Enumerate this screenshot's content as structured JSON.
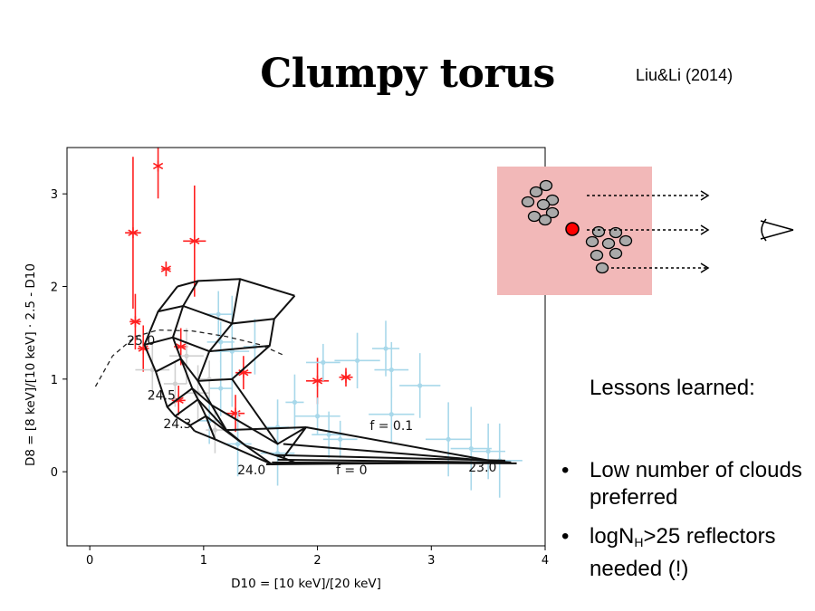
{
  "slide": {
    "title": "Clumpy torus",
    "citation": "Liu&Li (2014)",
    "lessons_heading": "Lessons learned:",
    "bullets": [
      {
        "text": "Low number of clouds preferred"
      },
      {
        "pre": "logN",
        "sub": "H",
        "post": ">25 reflectors needed (!)"
      }
    ],
    "bullet_glyph": "•"
  },
  "chart_data": {
    "type": "scatter",
    "xlabel": "D10 = [10 keV]/[20 keV]",
    "ylabel": "D8 = [8 keV]/[10 keV] · 2.5 - D10",
    "xlim": [
      -0.2,
      4.0
    ],
    "ylim": [
      -0.8,
      3.5
    ],
    "xticks": [
      0,
      1,
      2,
      3,
      4
    ],
    "yticks": [
      0,
      1,
      2,
      3
    ],
    "grid": false,
    "colors": {
      "red": "#ff2020",
      "lightblue": "#a8d8ea",
      "grey": "#d0d0d0",
      "grid_lines": "#111111"
    },
    "series": [
      {
        "marker": "star",
        "color": "#ff2020",
        "points": [
          {
            "x": 0.38,
            "y": 2.58,
            "xerr": 0.07,
            "yerr": 0.82
          },
          {
            "x": 0.92,
            "y": 2.49,
            "xerr": 0.1,
            "yerr": 0.6
          },
          {
            "x": 0.67,
            "y": 2.19,
            "xerr": 0.04,
            "yerr": 0.08
          },
          {
            "x": 0.4,
            "y": 1.62,
            "xerr": 0.05,
            "yerr": 0.3
          },
          {
            "x": 0.47,
            "y": 1.33,
            "xerr": 0.05,
            "yerr": 0.25
          },
          {
            "x": 0.8,
            "y": 1.35,
            "xerr": 0.06,
            "yerr": 0.2
          },
          {
            "x": 1.35,
            "y": 1.07,
            "xerr": 0.07,
            "yerr": 0.18
          },
          {
            "x": 0.78,
            "y": 0.77,
            "xerr": 0.06,
            "yerr": 0.16
          },
          {
            "x": 1.28,
            "y": 0.63,
            "xerr": 0.08,
            "yerr": 0.2
          },
          {
            "x": 2.0,
            "y": 0.98,
            "xerr": 0.1,
            "yerr": 0.25
          },
          {
            "x": 2.25,
            "y": 1.02,
            "xerr": 0.06,
            "yerr": 0.1
          },
          {
            "x": 0.6,
            "y": 3.3,
            "xerr": 0.0,
            "yerr": 0.35
          }
        ]
      },
      {
        "marker": "dot",
        "color": "#a8d8ea",
        "points": [
          {
            "x": 1.13,
            "y": 1.7,
            "xerr": 0.12,
            "yerr": 0.25
          },
          {
            "x": 1.15,
            "y": 1.4,
            "xerr": 0.12,
            "yerr": 0.22
          },
          {
            "x": 1.25,
            "y": 1.3,
            "xerr": 0.15,
            "yerr": 0.6
          },
          {
            "x": 1.45,
            "y": 1.35,
            "xerr": 0.1,
            "yerr": 0.3
          },
          {
            "x": 1.15,
            "y": 0.9,
            "xerr": 0.1,
            "yerr": 0.3
          },
          {
            "x": 1.05,
            "y": 0.55,
            "xerr": 0.1,
            "yerr": 0.25
          },
          {
            "x": 1.3,
            "y": 0.3,
            "xerr": 0.12,
            "yerr": 0.35
          },
          {
            "x": 1.65,
            "y": 0.48,
            "xerr": 0.1,
            "yerr": 0.3
          },
          {
            "x": 1.65,
            "y": 0.2,
            "xerr": 0.15,
            "yerr": 0.35
          },
          {
            "x": 1.8,
            "y": 0.75,
            "xerr": 0.08,
            "yerr": 0.3
          },
          {
            "x": 2.0,
            "y": 0.6,
            "xerr": 0.2,
            "yerr": 0.2
          },
          {
            "x": 2.1,
            "y": 0.4,
            "xerr": 0.15,
            "yerr": 0.25
          },
          {
            "x": 2.2,
            "y": 0.35,
            "xerr": 0.15,
            "yerr": 0.2
          },
          {
            "x": 2.35,
            "y": 1.2,
            "xerr": 0.2,
            "yerr": 0.3
          },
          {
            "x": 2.05,
            "y": 1.18,
            "xerr": 0.15,
            "yerr": 0.2
          },
          {
            "x": 2.6,
            "y": 1.33,
            "xerr": 0.12,
            "yerr": 0.3
          },
          {
            "x": 2.65,
            "y": 1.1,
            "xerr": 0.15,
            "yerr": 0.3
          },
          {
            "x": 2.9,
            "y": 0.93,
            "xerr": 0.18,
            "yerr": 0.35
          },
          {
            "x": 2.65,
            "y": 0.62,
            "xerr": 0.2,
            "yerr": 0.3
          },
          {
            "x": 3.15,
            "y": 0.35,
            "xerr": 0.2,
            "yerr": 0.4
          },
          {
            "x": 3.35,
            "y": 0.25,
            "xerr": 0.18,
            "yerr": 0.45
          },
          {
            "x": 3.6,
            "y": 0.12,
            "xerr": 0.2,
            "yerr": 0.4
          },
          {
            "x": 3.5,
            "y": 0.22,
            "xerr": 0.15,
            "yerr": 0.3
          }
        ]
      },
      {
        "marker": "dot",
        "color": "#d0d0d0",
        "points": [
          {
            "x": 0.55,
            "y": 1.1,
            "xerr": 0.15,
            "yerr": 0.3
          },
          {
            "x": 0.75,
            "y": 0.95,
            "xerr": 0.1,
            "yerr": 0.25
          },
          {
            "x": 0.85,
            "y": 1.25,
            "xerr": 0.15,
            "yerr": 0.3
          },
          {
            "x": 1.05,
            "y": 1.0,
            "xerr": 0.12,
            "yerr": 0.2
          },
          {
            "x": 0.95,
            "y": 0.85,
            "xerr": 0.1,
            "yerr": 0.3
          },
          {
            "x": 1.1,
            "y": 0.45,
            "xerr": 0.08,
            "yerr": 0.25
          }
        ]
      }
    ],
    "grid_model": {
      "rows": [
        [
          [
            0.77,
            2.0
          ],
          [
            0.95,
            2.06
          ],
          [
            1.32,
            2.08
          ],
          [
            1.8,
            1.9
          ]
        ],
        [
          [
            0.6,
            1.73
          ],
          [
            0.82,
            1.79
          ],
          [
            1.25,
            1.6
          ],
          [
            1.62,
            1.65
          ]
        ],
        [
          [
            0.48,
            1.37
          ],
          [
            0.73,
            1.45
          ],
          [
            1.05,
            1.3
          ],
          [
            1.58,
            1.36
          ]
        ],
        [
          [
            0.58,
            1.08
          ],
          [
            0.8,
            1.22
          ],
          [
            0.95,
            0.98
          ],
          [
            1.25,
            1.0
          ]
        ],
        [
          [
            0.68,
            0.7
          ],
          [
            0.9,
            0.9
          ],
          [
            1.07,
            0.72
          ],
          [
            1.65,
            0.3
          ]
        ],
        [
          [
            0.75,
            0.6
          ],
          [
            0.95,
            0.78
          ],
          [
            1.2,
            0.45
          ],
          [
            1.9,
            0.48
          ]
        ],
        [
          [
            0.88,
            0.5
          ],
          [
            1.02,
            0.6
          ],
          [
            1.37,
            0.28
          ],
          [
            1.7,
            0.15
          ]
        ],
        [
          [
            0.92,
            0.44
          ],
          [
            1.1,
            0.35
          ],
          [
            1.6,
            0.08
          ],
          [
            1.8,
            0.1
          ]
        ]
      ],
      "fan_to": [
        [
          3.6,
          0.1
        ],
        [
          3.7,
          0.1
        ],
        [
          3.65,
          0.12
        ],
        [
          3.75,
          0.09
        ]
      ],
      "fan_from": [
        [
          1.9,
          0.48
        ],
        [
          1.7,
          0.3
        ],
        [
          1.63,
          0.18
        ],
        [
          1.6,
          0.1
        ],
        [
          1.65,
          0.13
        ],
        [
          1.55,
          0.08
        ]
      ],
      "dashed_curve": [
        [
          0.05,
          0.92
        ],
        [
          0.2,
          1.25
        ],
        [
          0.4,
          1.46
        ],
        [
          0.6,
          1.53
        ],
        [
          0.9,
          1.52
        ],
        [
          1.2,
          1.46
        ],
        [
          1.5,
          1.37
        ],
        [
          1.7,
          1.26
        ]
      ]
    },
    "annotations": [
      {
        "text": "25.0",
        "x": 0.45,
        "y": 1.37
      },
      {
        "text": "24.5",
        "x": 0.63,
        "y": 0.78
      },
      {
        "text": "24.3",
        "x": 0.77,
        "y": 0.47
      },
      {
        "text": "24.0",
        "x": 1.42,
        "y": -0.03
      },
      {
        "text": "f = 0.1",
        "x": 2.65,
        "y": 0.45
      },
      {
        "text": "f = 0",
        "x": 2.3,
        "y": -0.03
      },
      {
        "text": "23.0",
        "x": 3.45,
        "y": 0.0
      }
    ]
  },
  "diagram": {
    "box_color": "#f2b8b8",
    "cloud_color": "#aaaaaa",
    "source_color": "#ff0000"
  }
}
